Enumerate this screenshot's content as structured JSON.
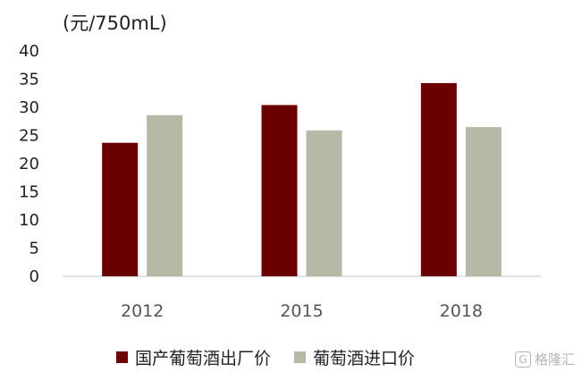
{
  "unit_label": "(元/750mL)",
  "watermark": "格隆汇",
  "colors": {
    "domestic": "#6b0000",
    "imported": "#b8b8a6",
    "axis": "#d9d9d9",
    "text": "#222222"
  },
  "chart_data": {
    "type": "bar",
    "categories": [
      "2012",
      "2015",
      "2018"
    ],
    "series": [
      {
        "name": "国产葡萄酒出厂价",
        "values": [
          23.7,
          30.4,
          34.3
        ],
        "color": "#6b0000"
      },
      {
        "name": "葡萄酒进口价",
        "values": [
          28.6,
          25.9,
          26.5
        ],
        "color": "#b8b8a6"
      }
    ],
    "ylim": [
      0,
      40
    ],
    "yticks": [
      0,
      5,
      10,
      15,
      20,
      25,
      30,
      35,
      40
    ],
    "ylabel": "(元/750mL)",
    "xlabel": "",
    "title": "",
    "grid": false,
    "legend_position": "bottom"
  }
}
